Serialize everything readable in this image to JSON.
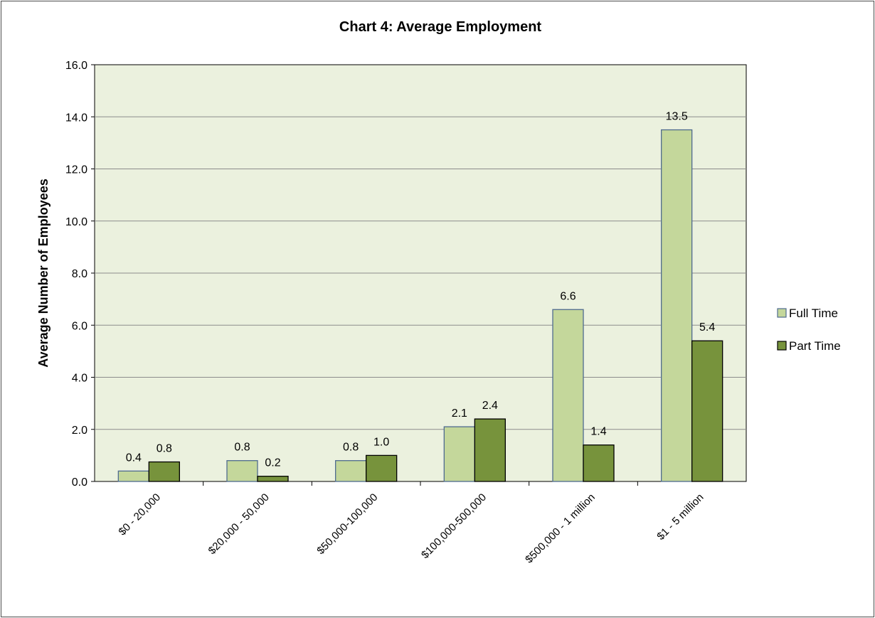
{
  "chart_data": {
    "type": "bar",
    "title": "Chart 4: Average Employment",
    "xlabel": "",
    "ylabel": "Average Number of Employees",
    "ylim": [
      0,
      16
    ],
    "yticks": [
      "0.0",
      "2.0",
      "4.0",
      "6.0",
      "8.0",
      "10.0",
      "12.0",
      "14.0",
      "16.0"
    ],
    "categories": [
      "$0 - 20,000",
      "$20,000 - 50,000",
      "$50,000-100,000",
      "$100,000-500,000",
      "$500,000 - 1 million",
      "$1 - 5 million"
    ],
    "series": [
      {
        "name": "Full Time",
        "values": [
          0.4,
          0.8,
          0.8,
          2.1,
          6.6,
          13.5
        ],
        "labels": [
          "0.4",
          "0.8",
          "0.8",
          "2.1",
          "6.6",
          "13.5"
        ],
        "color": "#c4d79b",
        "stroke": "#4f6b8f"
      },
      {
        "name": "Part Time",
        "values": [
          0.75,
          0.2,
          1.0,
          2.4,
          1.4,
          5.4
        ],
        "labels": [
          "0.8",
          "0.2",
          "1.0",
          "2.4",
          "1.4",
          "5.4"
        ],
        "color": "#77933c",
        "stroke": "#000000"
      }
    ],
    "grid": true,
    "legend": "right",
    "plot_background": "#ebf1de"
  }
}
